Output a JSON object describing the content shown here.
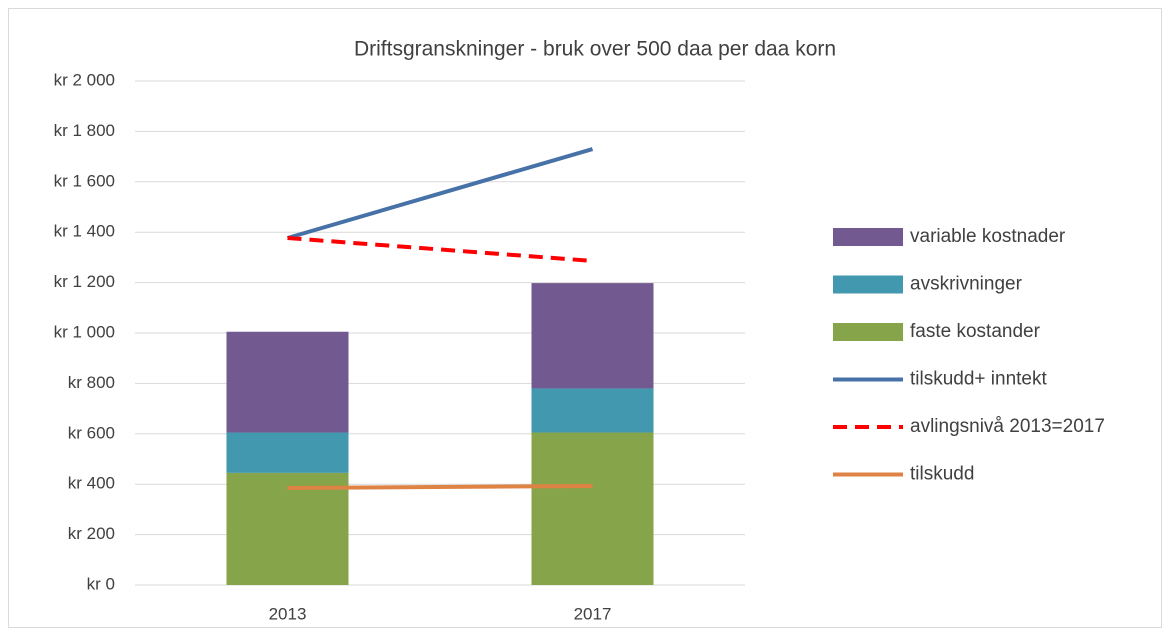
{
  "chart_data": {
    "type": "combo",
    "title": "Driftsgranskninger - bruk over 500 daa per daa korn",
    "categories": [
      "2013",
      "2017"
    ],
    "series": [
      {
        "name": "variable kostnader",
        "type": "bar",
        "color": "#725990",
        "values": [
          400,
          418
        ]
      },
      {
        "name": "avskrivninger",
        "type": "bar",
        "color": "#4198af",
        "values": [
          160,
          175
        ]
      },
      {
        "name": "faste kostander",
        "type": "bar",
        "color": "#86a44a",
        "values": [
          445,
          605
        ]
      },
      {
        "name": "tilskudd+ inntekt",
        "type": "line",
        "color": "#4672a8",
        "values": [
          1377,
          1730
        ]
      },
      {
        "name": "avlingsnivå 2013=2017",
        "type": "line",
        "dashed": true,
        "color": "#ff0000",
        "values": [
          1377,
          1286
        ]
      },
      {
        "name": "tilskudd",
        "type": "line",
        "color": "#de8344",
        "values": [
          385,
          393
        ]
      }
    ],
    "ylim": [
      0,
      2000
    ],
    "yticks": [
      {
        "value": 0,
        "label": "kr 0"
      },
      {
        "value": 200,
        "label": "kr 200"
      },
      {
        "value": 400,
        "label": "kr 400"
      },
      {
        "value": 600,
        "label": "kr 600"
      },
      {
        "value": 800,
        "label": "kr 800"
      },
      {
        "value": 1000,
        "label": "kr 1 000"
      },
      {
        "value": 1200,
        "label": "kr 1 200"
      },
      {
        "value": 1400,
        "label": "kr 1 400"
      },
      {
        "value": 1600,
        "label": "kr 1 600"
      },
      {
        "value": 1800,
        "label": "kr 1 800"
      },
      {
        "value": 2000,
        "label": "kr 2 000"
      }
    ],
    "grid": true,
    "legend": "right"
  }
}
